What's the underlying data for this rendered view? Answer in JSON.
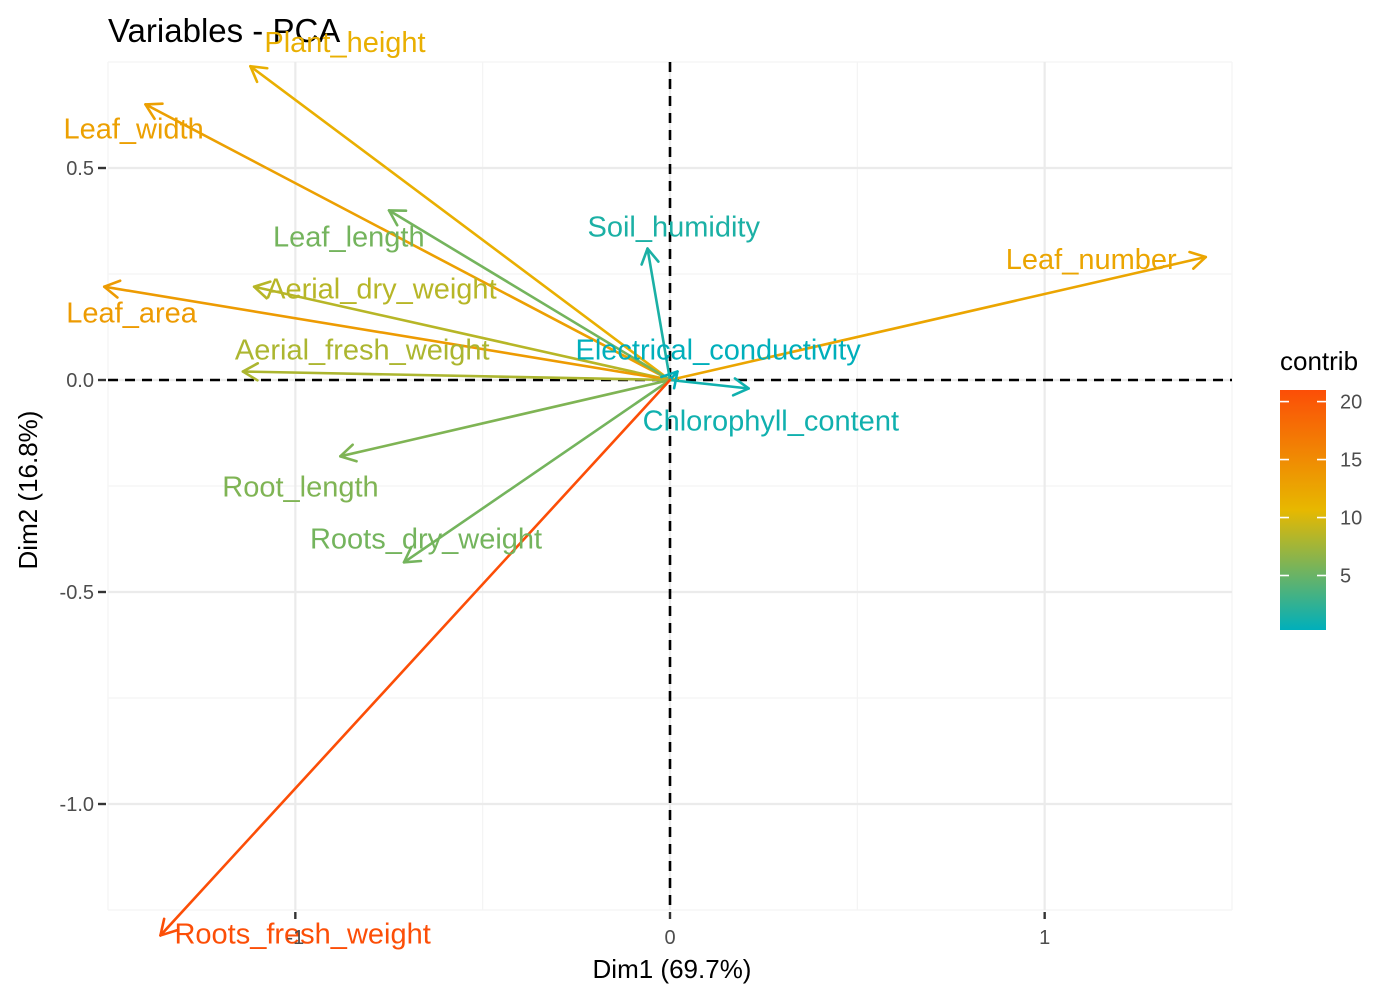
{
  "chart_data": {
    "type": "scatter",
    "subtype": "pca-variable-correlation-arrows",
    "title": "Variables - PCA",
    "xlabel": "Dim1 (69.7%)",
    "ylabel": "Dim2 (16.8%)",
    "xlim": [
      -1.5,
      1.5
    ],
    "ylim": [
      -1.25,
      0.75
    ],
    "x_ticks": [
      -1,
      0,
      1
    ],
    "x_tick_labels": [
      "-1",
      "0",
      "1"
    ],
    "y_ticks": [
      -1.0,
      -0.5,
      0.0,
      0.5
    ],
    "y_tick_labels": [
      "-1.0",
      "-0.5",
      "0.0",
      "0.5"
    ],
    "grid": true,
    "reference_lines": {
      "x": 0,
      "y": 0,
      "style": "dashed"
    },
    "variables": [
      {
        "name": "Plant_height",
        "x": -1.12,
        "y": 0.74,
        "contrib": 11.5
      },
      {
        "name": "Leaf_width",
        "x": -1.4,
        "y": 0.65,
        "contrib": 13.0
      },
      {
        "name": "Leaf_length",
        "x": -0.75,
        "y": 0.4,
        "contrib": 5.5
      },
      {
        "name": "Aerial_dry_weight",
        "x": -1.11,
        "y": 0.22,
        "contrib": 8.5
      },
      {
        "name": "Leaf_area",
        "x": -1.51,
        "y": 0.22,
        "contrib": 13.5
      },
      {
        "name": "Aerial_fresh_weight",
        "x": -1.14,
        "y": 0.02,
        "contrib": 8.0
      },
      {
        "name": "Soil_humidity",
        "x": -0.06,
        "y": 0.31,
        "contrib": 1.5
      },
      {
        "name": "Leaf_number",
        "x": 1.43,
        "y": 0.29,
        "contrib": 12.5
      },
      {
        "name": "Electrical_conductivity",
        "x": 0.02,
        "y": 0.02,
        "contrib": 0.3
      },
      {
        "name": "Chlorophyll_content",
        "x": 0.21,
        "y": -0.02,
        "contrib": 1.0
      },
      {
        "name": "Root_length",
        "x": -0.88,
        "y": -0.18,
        "contrib": 6.0
      },
      {
        "name": "Roots_dry_weight",
        "x": -0.71,
        "y": -0.43,
        "contrib": 5.5
      },
      {
        "name": "Roots_fresh_weight",
        "x": -1.36,
        "y": -1.31,
        "contrib": 21.0
      }
    ],
    "legend": {
      "title": "contrib",
      "position": "right",
      "ticks": [
        5,
        10,
        15,
        20
      ],
      "tick_labels": [
        "5",
        "10",
        "15",
        "20"
      ],
      "range": [
        0.3,
        21.0
      ],
      "gradient": [
        "#00AFBB",
        "#E7B800",
        "#FC4E07"
      ]
    }
  }
}
